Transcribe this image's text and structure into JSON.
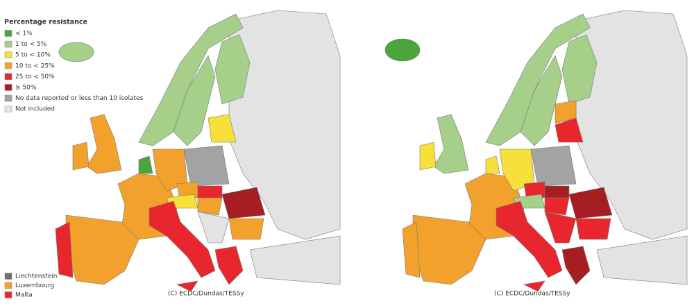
{
  "legend": {
    "title": "Percentage resistance",
    "items": [
      {
        "label": "< 1%",
        "color": "#4aa63a"
      },
      {
        "label": "1 to < 5%",
        "color": "#a6d08a"
      },
      {
        "label": "5 to < 10%",
        "color": "#f7e03a"
      },
      {
        "label": "10 to < 25%",
        "color": "#f2a22c"
      },
      {
        "label": "25 to < 50%",
        "color": "#e8262e"
      },
      {
        "label": "≥ 50%",
        "color": "#a51e22"
      },
      {
        "label": "No data reported or less than 10 isolates",
        "color": "#a3a3a3"
      },
      {
        "label": "Not included",
        "color": "#e3e3e3"
      }
    ]
  },
  "small_countries": [
    {
      "label": "Liechtenstein",
      "color": "#707070"
    },
    {
      "label": "Luxembourg",
      "color": "#f2a22c"
    },
    {
      "label": "Malta",
      "color": "#e8262e"
    }
  ],
  "maps": [
    {
      "credit": "(C) ECDC/Dundas/TESSy"
    },
    {
      "credit": "(C) ECDC/Dundas/TESSy"
    }
  ]
}
